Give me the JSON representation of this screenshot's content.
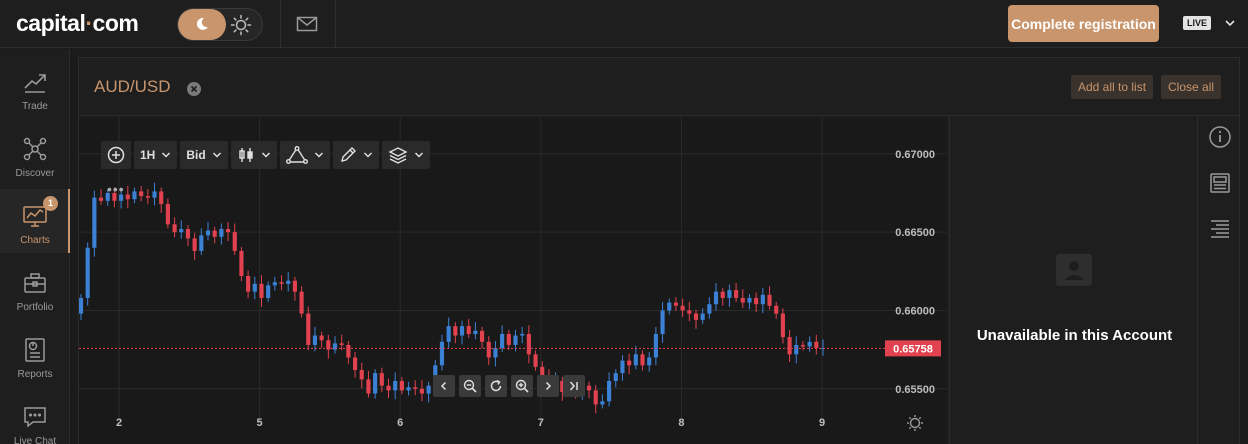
{
  "brand": {
    "name_part1": "capital",
    "name_dot": "·",
    "name_part2": "com",
    "accent": "#c8956c"
  },
  "topbar": {
    "theme_toggle": {
      "dark_icon": "moon-icon",
      "light_icon": "sun-icon",
      "active": "dark"
    },
    "mail_icon": "mail-icon",
    "complete_registration_label": "Complete registration",
    "account_mode_label": "LIVE",
    "account_menu_icon": "chevron-down-icon"
  },
  "sidebar": {
    "items": [
      {
        "label": "Trade",
        "icon": "trend-icon",
        "active": false
      },
      {
        "label": "Discover",
        "icon": "network-icon",
        "active": false
      },
      {
        "label": "Charts",
        "icon": "chart-monitor-icon",
        "active": true,
        "badge": "1"
      },
      {
        "label": "Portfolio",
        "icon": "briefcase-icon",
        "active": false
      },
      {
        "label": "Reports",
        "icon": "report-icon",
        "active": false
      },
      {
        "label": "Live Chat",
        "icon": "chat-icon",
        "active": false
      }
    ]
  },
  "main": {
    "instrument_title": "AUD/USD",
    "add_all_label": "Add all to list",
    "close_all_label": "Close all",
    "toolbar": {
      "timeframe": "1H",
      "price_type": "Bid",
      "more_dots": "•••"
    },
    "info_panel_text": "Unavailable in this Account"
  },
  "chart_data": {
    "type": "candlestick",
    "x_tick_labels": [
      "2",
      "5",
      "6",
      "7",
      "8",
      "9"
    ],
    "y_tick_labels": [
      "0.67000",
      "0.66500",
      "0.66000",
      "0.65500"
    ],
    "ylim": [
      0.6532,
      0.6712
    ],
    "current_price": 0.65758,
    "current_price_label": "0.65758",
    "colors": {
      "up": "#3b82d6",
      "down": "#e2424f",
      "price_line": "#e2424f",
      "grid": "#2a2a2a",
      "axis_text": "#bdbdbd"
    },
    "grid": true,
    "closes": [
      0.6608,
      0.664,
      0.6672,
      0.667,
      0.6675,
      0.667,
      0.6674,
      0.6671,
      0.6676,
      0.6673,
      0.6672,
      0.6676,
      0.6668,
      0.6655,
      0.665,
      0.6652,
      0.6646,
      0.6638,
      0.6648,
      0.6651,
      0.6647,
      0.6652,
      0.665,
      0.6638,
      0.6622,
      0.6612,
      0.6617,
      0.6608,
      0.6616,
      0.6618,
      0.6617,
      0.6619,
      0.6612,
      0.6598,
      0.6578,
      0.6584,
      0.6581,
      0.6575,
      0.6579,
      0.6578,
      0.657,
      0.6562,
      0.6556,
      0.6547,
      0.656,
      0.6552,
      0.6549,
      0.6555,
      0.6549,
      0.6551,
      0.655,
      0.6547,
      0.6552,
      0.6565,
      0.658,
      0.659,
      0.6584,
      0.659,
      0.6585,
      0.6587,
      0.658,
      0.657,
      0.6576,
      0.6585,
      0.6578,
      0.6584,
      0.6585,
      0.6572,
      0.6564,
      0.6558,
      0.6551,
      0.6555,
      0.6548,
      0.655,
      0.6547,
      0.6552,
      0.6549,
      0.654,
      0.6542,
      0.6555,
      0.656,
      0.6568,
      0.6565,
      0.6572,
      0.6565,
      0.657,
      0.6585,
      0.66,
      0.6605,
      0.6603,
      0.66,
      0.6598,
      0.6594,
      0.6598,
      0.6604,
      0.6612,
      0.6608,
      0.6613,
      0.6608,
      0.6605,
      0.6608,
      0.6604,
      0.661,
      0.6603,
      0.6598,
      0.6583,
      0.6572,
      0.6578,
      0.6577,
      0.658,
      0.6576,
      0.6576
    ]
  }
}
